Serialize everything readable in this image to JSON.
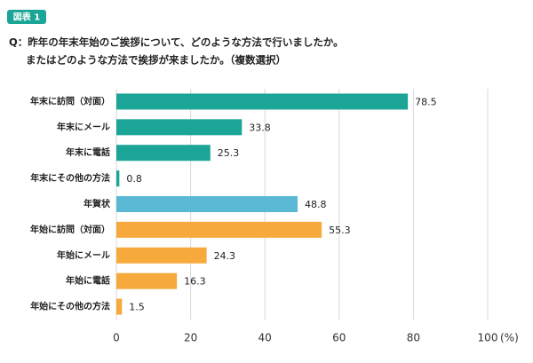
{
  "chart_data": {
    "type": "hbar",
    "badge": "図表 1",
    "title": "Q：昨年の年末年始のご挨拶について、どのような方法で行いましたか。",
    "subtitle": "またはどのような方法で挨拶が来ましたか。（複数選択）",
    "xlabel": "(%)",
    "categories": [
      "年末に訪問（対面）",
      "年末にメール",
      "年末に電話",
      "年末にその他の方法",
      "年賀状",
      "年始に訪問（対面）",
      "年始にメール",
      "年始に電話",
      "年始にその他の方法"
    ],
    "values": [
      78.5,
      33.8,
      25.3,
      0.8,
      48.8,
      55.3,
      24.3,
      16.3,
      1.5
    ],
    "colors": [
      "#1aa596",
      "#1aa596",
      "#1aa596",
      "#1aa596",
      "#5bb8d4",
      "#f6aa3c",
      "#f6aa3c",
      "#f6aa3c",
      "#f6aa3c"
    ],
    "xlim": [
      0,
      100
    ],
    "xticks": [
      0,
      20,
      40,
      60,
      80,
      100
    ],
    "grid": true
  }
}
